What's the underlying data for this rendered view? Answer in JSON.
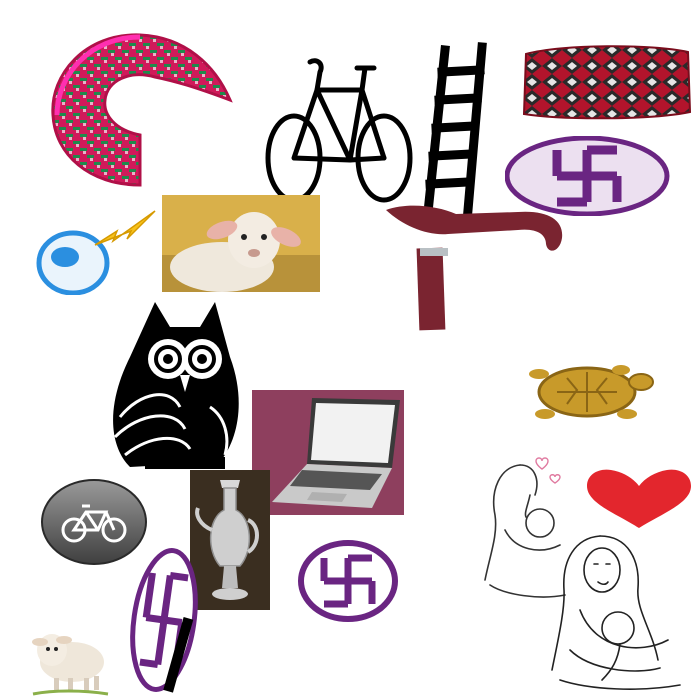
{
  "canvas": {
    "background": "#ffffff"
  },
  "items": [
    {
      "id": "basket-fan",
      "icon": "woven-basket-fan-icon",
      "colors": [
        "#d01a5a",
        "#1f8a4c",
        "#e8b4c8"
      ]
    },
    {
      "id": "bicycle-outline",
      "icon": "bicycle-icon",
      "colors": [
        "#000000"
      ]
    },
    {
      "id": "ladder",
      "icon": "ladder-icon",
      "colors": [
        "#000000"
      ]
    },
    {
      "id": "cushion",
      "icon": "patterned-cushion-icon",
      "colors": [
        "#b3142c",
        "#2a2a2a",
        "#e6e6e6"
      ]
    },
    {
      "id": "swastika-oval-top",
      "icon": "swastika-oval-icon",
      "colors": [
        "#6a2582",
        "#ece0f0"
      ]
    },
    {
      "id": "plug-socket",
      "icon": "electric-plug-icon",
      "colors": [
        "#2b8fe0",
        "#f7c21b"
      ]
    },
    {
      "id": "sheep-photo",
      "icon": "sheep-photo-icon",
      "colors": [
        "#d9b04a",
        "#efe8dc"
      ]
    },
    {
      "id": "walking-cane",
      "icon": "walking-cane-icon",
      "colors": [
        "#7a2430",
        "#b9c0c4"
      ]
    },
    {
      "id": "owl",
      "icon": "owl-icon",
      "colors": [
        "#000000"
      ]
    },
    {
      "id": "laptop",
      "icon": "laptop-icon",
      "colors": [
        "#8e3f5e",
        "#c9c9c9",
        "#f2f2f2"
      ]
    },
    {
      "id": "tortoise",
      "icon": "golden-tortoise-icon",
      "colors": [
        "#c89a2a",
        "#8a6515"
      ]
    },
    {
      "id": "mother-child-sketch-top",
      "icon": "mother-child-sketch-icon",
      "colors": [
        "#333333",
        "#e07aa0"
      ]
    },
    {
      "id": "heart",
      "icon": "heart-icon",
      "colors": [
        "#e3262d"
      ]
    },
    {
      "id": "bicycle-badge",
      "icon": "bicycle-badge-icon",
      "colors": [
        "#5b5b5b",
        "#ffffff"
      ]
    },
    {
      "id": "silver-jug",
      "icon": "silver-jug-icon",
      "colors": [
        "#3a2e20",
        "#cfcfcf"
      ]
    },
    {
      "id": "swastika-round-bottom",
      "icon": "swastika-round-icon",
      "colors": [
        "#6a2582"
      ]
    },
    {
      "id": "mother-child-sketch-bottom",
      "icon": "mother-child-sketch-icon",
      "colors": [
        "#222222"
      ]
    },
    {
      "id": "sheep-small",
      "icon": "lamb-icon",
      "colors": [
        "#efe7da",
        "#8bb04a"
      ]
    },
    {
      "id": "swastika-oval-tilted",
      "icon": "swastika-oval-icon",
      "colors": [
        "#6a2582",
        "#000000"
      ]
    }
  ]
}
